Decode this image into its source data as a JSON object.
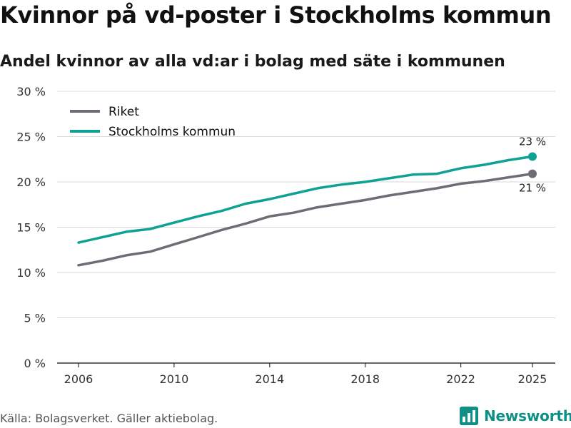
{
  "header": {
    "title": "Kvinnor på vd-poster i Stockholms kommun",
    "subtitle": "Andel kvinnor av alla vd:ar i bolag med säte i kommunen"
  },
  "footer": {
    "source": "Källa: Bolagsverket. Gäller aktiebolag.",
    "brand": "Newsworthy"
  },
  "colors": {
    "riket": "#6e6d75",
    "stockholm": "#0fa194",
    "grid": "#d9d9d9",
    "axis": "#333333",
    "brand": "#0f8f86"
  },
  "chart_data": {
    "type": "line",
    "x": [
      2006,
      2007,
      2008,
      2009,
      2010,
      2011,
      2012,
      2013,
      2014,
      2015,
      2016,
      2017,
      2018,
      2019,
      2020,
      2021,
      2022,
      2023,
      2024,
      2025
    ],
    "series": [
      {
        "name": "Riket",
        "color_key": "riket",
        "values": [
          10.8,
          11.3,
          11.9,
          12.3,
          13.1,
          13.9,
          14.7,
          15.4,
          16.2,
          16.6,
          17.2,
          17.6,
          18.0,
          18.5,
          18.9,
          19.3,
          19.8,
          20.1,
          20.5,
          20.9
        ],
        "end_label": "21 %",
        "end_label_position": "below"
      },
      {
        "name": "Stockholms kommun",
        "color_key": "stockholm",
        "values": [
          13.3,
          13.9,
          14.5,
          14.8,
          15.5,
          16.2,
          16.8,
          17.6,
          18.1,
          18.7,
          19.3,
          19.7,
          20.0,
          20.4,
          20.8,
          20.9,
          21.5,
          21.9,
          22.4,
          22.8
        ],
        "end_label": "23 %",
        "end_label_position": "above"
      }
    ],
    "y_ticks": [
      0,
      5,
      10,
      15,
      20,
      25,
      30
    ],
    "y_tick_labels": [
      "0 %",
      "5 %",
      "10 %",
      "15 %",
      "20 %",
      "25 %",
      "30 %"
    ],
    "x_ticks": [
      2006,
      2010,
      2014,
      2018,
      2022,
      2025
    ],
    "x_tick_labels": [
      "2006",
      "2010",
      "2014",
      "2018",
      "2022",
      "2025"
    ],
    "ylim": [
      0,
      30
    ],
    "xlim": [
      2006,
      2025
    ],
    "grid": true,
    "legend_position": "top-left",
    "xlabel": "",
    "ylabel": ""
  }
}
